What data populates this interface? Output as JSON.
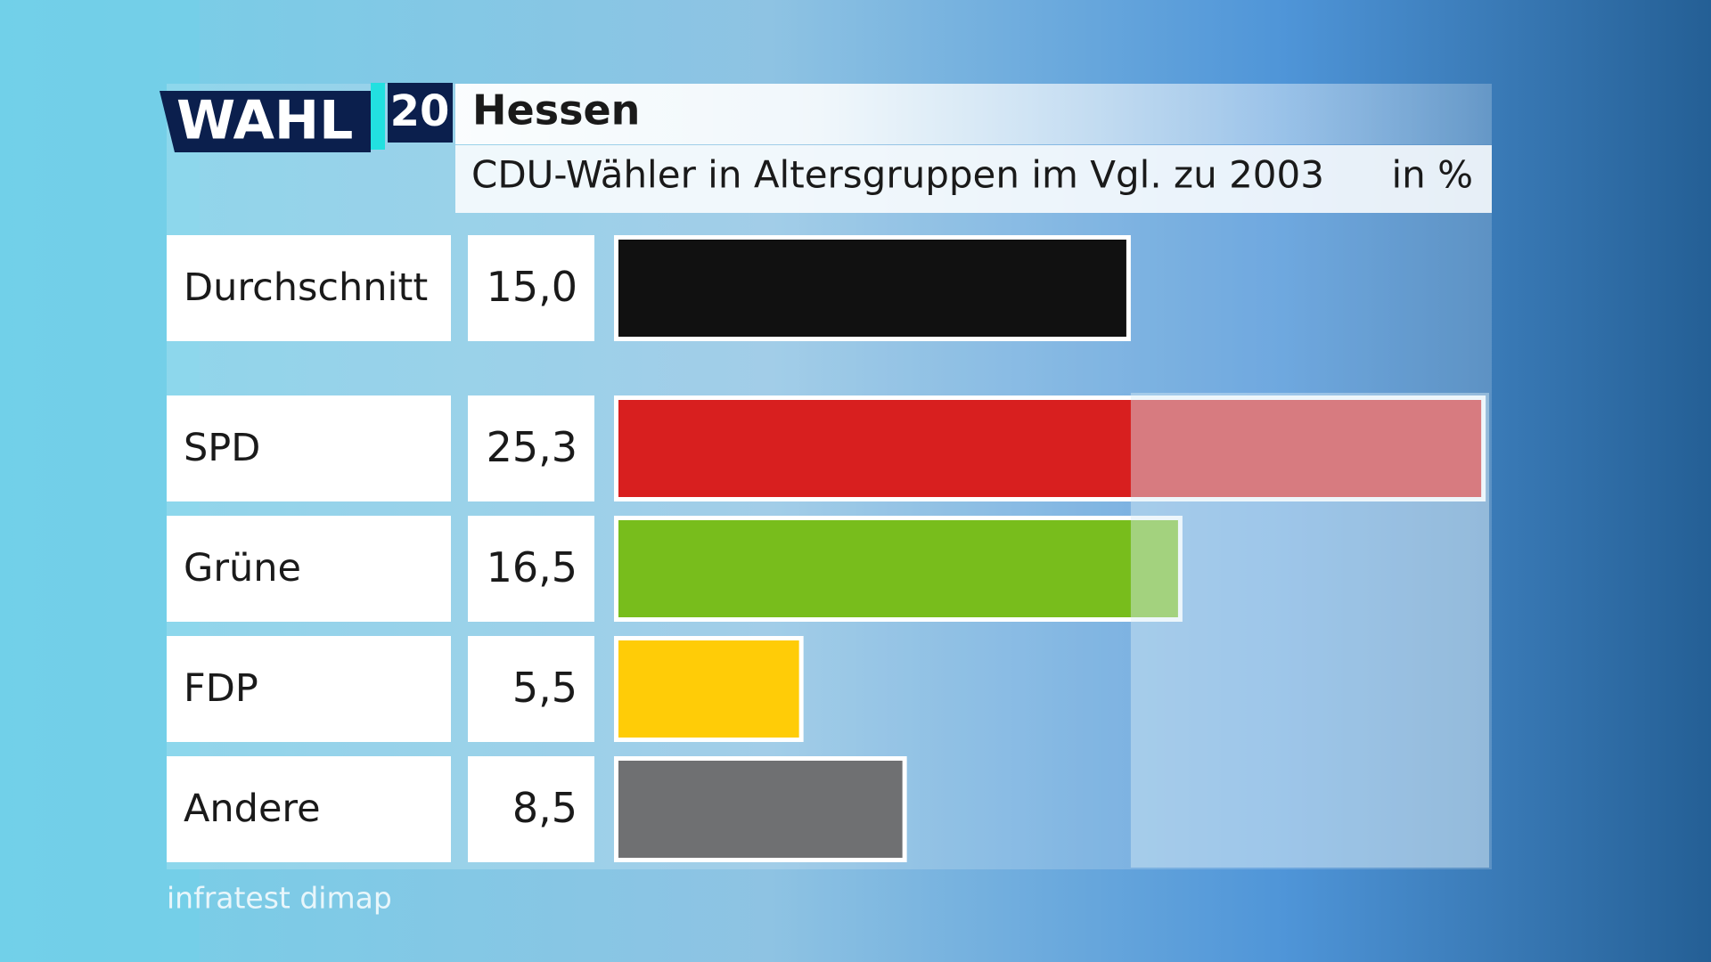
{
  "logo": {
    "text": "WAHL",
    "number": "20"
  },
  "chart_data": {
    "type": "bar",
    "orientation": "horizontal",
    "title": "Hessen",
    "subtitle": "CDU-Wähler in Altersgruppen im Vgl. zu 2003",
    "unit": "in %",
    "categories": [
      "Durchschnitt",
      "SPD",
      "Grüne",
      "FDP",
      "Andere"
    ],
    "values": [
      15.0,
      25.3,
      16.5,
      5.5,
      8.5
    ],
    "value_labels": [
      "15,0",
      "25,3",
      "16,5",
      "5,5",
      "8,5"
    ],
    "colors": [
      "#111111",
      "#d81f1f",
      "#78bd1c",
      "#ffcc07",
      "#6f7072"
    ],
    "xlim": [
      0,
      25.4
    ],
    "source": "infratest dimap"
  }
}
